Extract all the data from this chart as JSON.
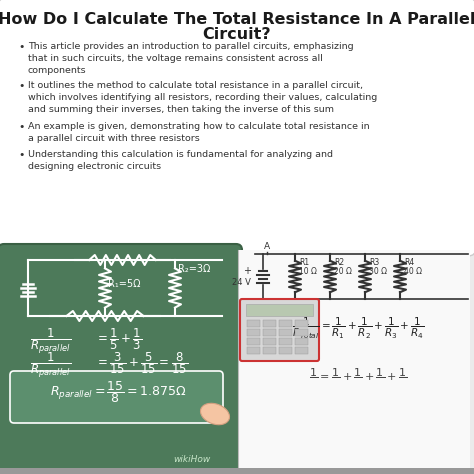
{
  "title_line1": "How Do I Calculate The Total Resistance In A Parallel",
  "title_line2": "Circuit?",
  "title_fontsize": 11.5,
  "bg_color": "#ebebeb",
  "card_bg": "#ffffff",
  "card_edge": "#cccccc",
  "bullet_points": [
    "This article provides an introduction to parallel circuits, emphasizing\nthat in such circuits, the voltage remains consistent across all\ncomponents",
    "It outlines the method to calculate total resistance in a parallel circuit,\nwhich involves identifying all resistors, recording their values, calculating\nand summing their inverses, then taking the inverse of this sum",
    "An example is given, demonstrating how to calculate total resistance in\na parallel circuit with three resistors",
    "Understanding this calculation is fundamental for analyzing and\ndesigning electronic circuits"
  ],
  "bullet_fontsize": 6.8,
  "green_bg": "#4d7a5a",
  "right_bg": "#f8f8f8",
  "wikihow_color": "#888888"
}
